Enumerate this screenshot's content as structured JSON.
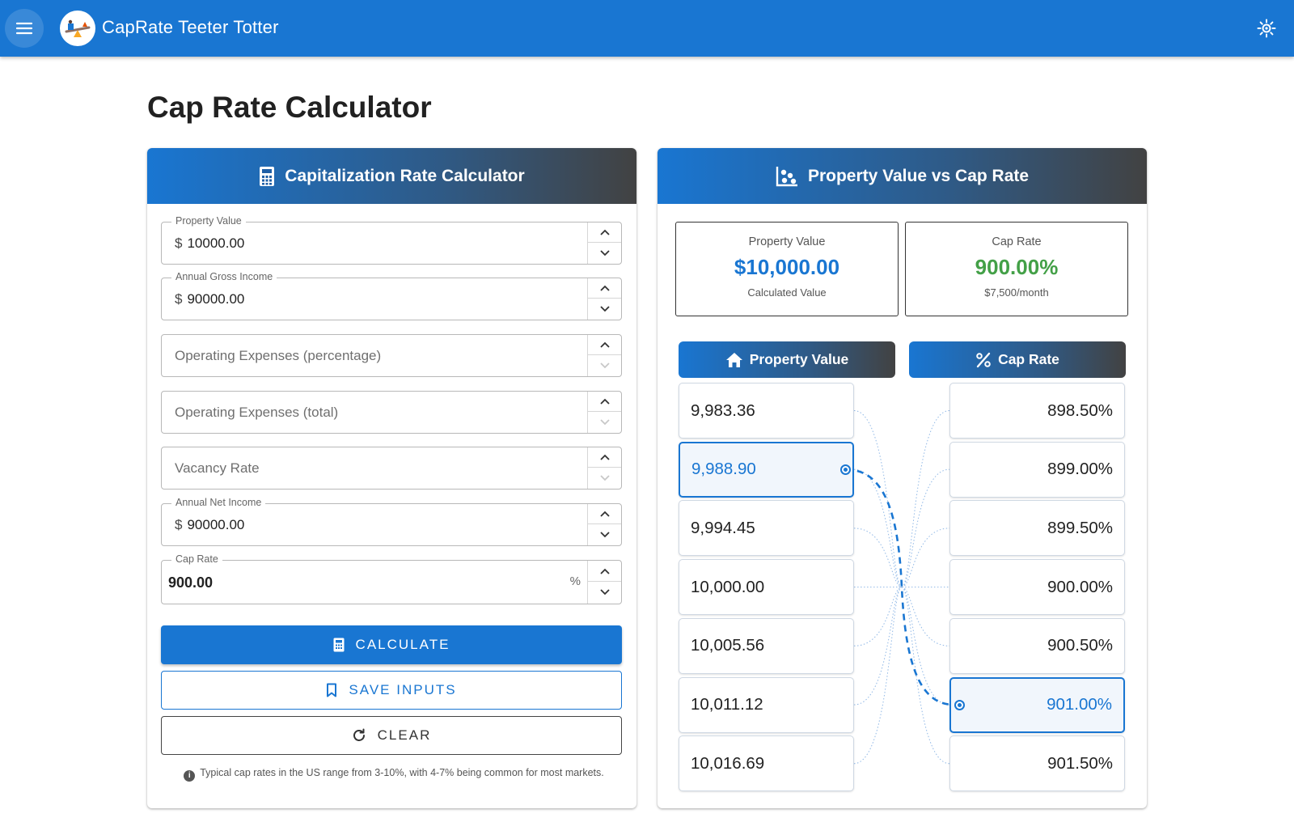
{
  "app": {
    "title": "CapRate Teeter Totter",
    "icons": {
      "menu": "menu-icon",
      "logo": "seesaw-logo",
      "theme": "brightness-icon"
    },
    "accent_color": "#1976d2"
  },
  "page_title": "Cap Rate Calculator",
  "calculator": {
    "header": "Capitalization Rate Calculator",
    "fields": {
      "property_value": {
        "label": "Property Value",
        "prefix": "$",
        "value": "10000.00"
      },
      "annual_gross_income": {
        "label": "Annual Gross Income",
        "prefix": "$",
        "value": "90000.00"
      },
      "operating_expenses_percentage": {
        "placeholder": "Operating Expenses (percentage)"
      },
      "operating_expenses_total": {
        "placeholder": "Operating Expenses (total)"
      },
      "vacancy_rate": {
        "placeholder": "Vacancy Rate"
      },
      "annual_net_income": {
        "label": "Annual Net Income",
        "prefix": "$",
        "value": "90000.00"
      },
      "cap_rate": {
        "label": "Cap Rate",
        "value": "900.00",
        "suffix": "%"
      }
    },
    "buttons": {
      "calculate": "CALCULATE",
      "save": "SAVE INPUTS",
      "clear": "CLEAR"
    },
    "hint": "Typical cap rates in the US range from 3-10%, with 4-7% being common for most markets."
  },
  "comparison": {
    "header": "Property Value vs Cap Rate",
    "summary": {
      "property_value": {
        "label": "Property Value",
        "value": "$10,000.00",
        "sub": "Calculated Value",
        "color": "#1976d2"
      },
      "cap_rate": {
        "label": "Cap Rate",
        "value": "900.00%",
        "sub": "$7,500/month",
        "color": "#43a047"
      }
    },
    "columns": {
      "property_value": "Property Value",
      "cap_rate": "Cap Rate"
    },
    "property_values": [
      "9,983.36",
      "9,988.90",
      "9,994.45",
      "10,000.00",
      "10,005.56",
      "10,011.12",
      "10,016.69"
    ],
    "cap_rates": [
      "898.50%",
      "899.00%",
      "899.50%",
      "900.00%",
      "900.50%",
      "901.00%",
      "901.50%"
    ],
    "selected_property_index": 1,
    "selected_cap_index": 5
  }
}
